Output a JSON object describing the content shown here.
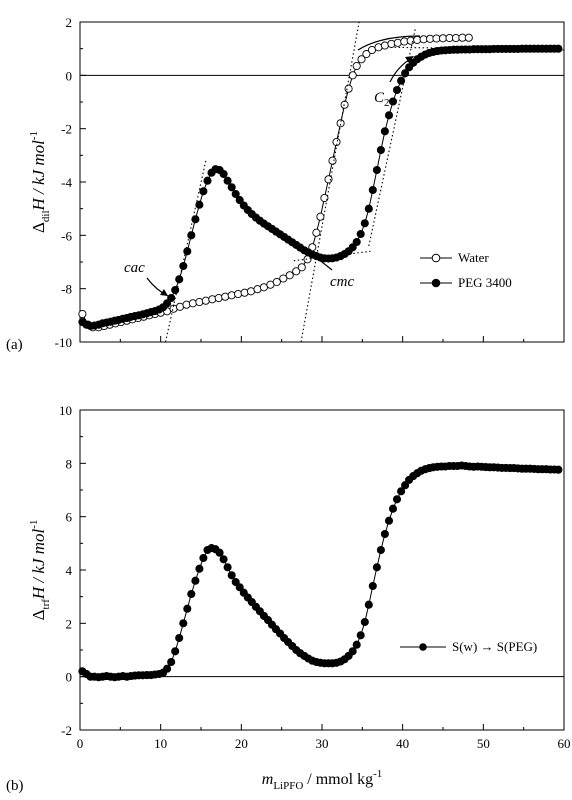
{
  "chart_data": [
    {
      "panel_label": "(a)",
      "type": "scatter",
      "ylabel_main": "Δ",
      "ylabel_sub": "dil",
      "ylabel_rest": "H / kJ mol",
      "ylabel_sup": "-1",
      "xlim": [
        0,
        60
      ],
      "ylim": [
        -10,
        2
      ],
      "yticks": [
        2,
        0,
        -2,
        -4,
        -6,
        -8,
        -10
      ],
      "yticklabels": [
        "2",
        "0",
        "-2",
        "-4",
        "-6",
        "-8",
        "-10"
      ],
      "zero_line": true,
      "grid": false,
      "legend_position": "center-right",
      "annotations": [
        {
          "text": "cac"
        },
        {
          "text": "cmc"
        },
        {
          "text": "C",
          "sub": "2"
        }
      ],
      "series": [
        {
          "name": "Water",
          "marker": "open-circle",
          "x": [
            0.3,
            1.0,
            1.6,
            2.3,
            3.0,
            3.7,
            4.4,
            5.1,
            5.8,
            6.5,
            7.2,
            7.9,
            8.6,
            9.3,
            10.0,
            10.8,
            11.6,
            12.4,
            13.2,
            14.0,
            14.8,
            15.6,
            16.4,
            17.2,
            18.0,
            18.8,
            19.6,
            20.4,
            21.2,
            22.0,
            22.8,
            23.6,
            24.4,
            25.2,
            26.0,
            26.8,
            27.5,
            28.2,
            28.8,
            29.3,
            29.8,
            30.3,
            30.8,
            31.3,
            31.8,
            32.3,
            32.8,
            33.3,
            33.8,
            34.3,
            34.9,
            35.5,
            36.2,
            37.0,
            37.8,
            38.6,
            39.4,
            40.2,
            41.0,
            41.8,
            42.6,
            43.4,
            44.2,
            45.0,
            45.8,
            46.6,
            47.4,
            48.2
          ],
          "y": [
            -8.95,
            -9.35,
            -9.45,
            -9.45,
            -9.4,
            -9.35,
            -9.3,
            -9.25,
            -9.2,
            -9.15,
            -9.1,
            -9.05,
            -9.0,
            -8.95,
            -8.9,
            -8.85,
            -8.75,
            -8.68,
            -8.6,
            -8.55,
            -8.5,
            -8.45,
            -8.4,
            -8.35,
            -8.3,
            -8.25,
            -8.2,
            -8.15,
            -8.1,
            -8.02,
            -7.95,
            -7.85,
            -7.75,
            -7.62,
            -7.5,
            -7.35,
            -7.2,
            -6.9,
            -6.45,
            -5.9,
            -5.3,
            -4.6,
            -3.9,
            -3.2,
            -2.5,
            -1.8,
            -1.1,
            -0.5,
            0.0,
            0.35,
            0.6,
            0.8,
            0.95,
            1.05,
            1.12,
            1.18,
            1.22,
            1.27,
            1.3,
            1.33,
            1.35,
            1.37,
            1.38,
            1.39,
            1.4,
            1.4,
            1.41,
            1.41
          ]
        },
        {
          "name": "PEG 3400",
          "marker": "filled-circle",
          "x": [
            0.3,
            0.8,
            1.3,
            1.8,
            2.3,
            2.8,
            3.3,
            3.8,
            4.3,
            4.8,
            5.3,
            5.8,
            6.3,
            6.8,
            7.3,
            7.8,
            8.3,
            8.8,
            9.3,
            9.8,
            10.3,
            10.8,
            11.3,
            11.8,
            12.3,
            12.8,
            13.3,
            13.8,
            14.3,
            14.8,
            15.3,
            15.8,
            16.3,
            16.8,
            17.3,
            17.8,
            18.3,
            18.8,
            19.3,
            19.8,
            20.3,
            20.8,
            21.3,
            21.8,
            22.3,
            22.8,
            23.3,
            23.8,
            24.3,
            24.8,
            25.3,
            25.8,
            26.3,
            26.8,
            27.3,
            27.8,
            28.3,
            28.8,
            29.3,
            29.8,
            30.3,
            30.8,
            31.3,
            31.8,
            32.3,
            32.8,
            33.3,
            33.8,
            34.3,
            34.8,
            35.3,
            35.8,
            36.3,
            36.8,
            37.3,
            37.8,
            38.3,
            38.8,
            39.3,
            39.8,
            40.3,
            40.8,
            41.3,
            41.8,
            42.3,
            42.8,
            43.3,
            43.8,
            44.3,
            44.8,
            45.3,
            45.8,
            46.3,
            46.8,
            47.3,
            47.8,
            48.3,
            48.8,
            49.3,
            49.8,
            50.3,
            50.8,
            51.3,
            51.8,
            52.3,
            52.8,
            53.3,
            53.8,
            54.3,
            54.8,
            55.3,
            55.8,
            56.3,
            56.8,
            57.3,
            57.8,
            58.3,
            58.8,
            59.3
          ],
          "y": [
            -9.25,
            -9.35,
            -9.4,
            -9.38,
            -9.35,
            -9.3,
            -9.27,
            -9.24,
            -9.2,
            -9.17,
            -9.13,
            -9.1,
            -9.06,
            -9.03,
            -9.0,
            -8.96,
            -8.92,
            -8.88,
            -8.84,
            -8.78,
            -8.7,
            -8.55,
            -8.35,
            -8.05,
            -7.65,
            -7.15,
            -6.6,
            -6.0,
            -5.4,
            -4.85,
            -4.35,
            -3.95,
            -3.65,
            -3.52,
            -3.55,
            -3.7,
            -3.95,
            -4.2,
            -4.45,
            -4.68,
            -4.88,
            -5.05,
            -5.2,
            -5.33,
            -5.45,
            -5.56,
            -5.66,
            -5.76,
            -5.86,
            -5.96,
            -6.06,
            -6.16,
            -6.26,
            -6.36,
            -6.46,
            -6.56,
            -6.64,
            -6.72,
            -6.78,
            -6.83,
            -6.86,
            -6.87,
            -6.86,
            -6.83,
            -6.78,
            -6.7,
            -6.6,
            -6.45,
            -6.25,
            -5.95,
            -5.55,
            -5.0,
            -4.3,
            -3.55,
            -2.8,
            -2.1,
            -1.5,
            -0.98,
            -0.55,
            -0.2,
            0.08,
            0.3,
            0.47,
            0.6,
            0.7,
            0.78,
            0.84,
            0.88,
            0.91,
            0.93,
            0.94,
            0.95,
            0.96,
            0.96,
            0.97,
            0.97,
            0.97,
            0.98,
            0.98,
            0.98,
            0.98,
            0.98,
            0.99,
            0.99,
            0.99,
            0.99,
            0.99,
            0.99,
            0.99,
            1.0,
            1.0,
            1.0,
            1.0,
            1.0,
            1.0,
            1.0,
            1.0,
            1.0,
            1.0
          ]
        }
      ]
    },
    {
      "panel_label": "(b)",
      "type": "scatter",
      "ylabel_main": "Δ",
      "ylabel_sub": "trf",
      "ylabel_rest": "H / kJ mol",
      "ylabel_sup": "-1",
      "xlabel_main": "m",
      "xlabel_sub": "LiPFO",
      "xlabel_rest": " / mmol kg",
      "xlabel_sup": "-1",
      "xlim": [
        0,
        60
      ],
      "ylim": [
        -2,
        10
      ],
      "xticks": [
        0,
        10,
        20,
        30,
        40,
        50,
        60
      ],
      "xticklabels": [
        "0",
        "10",
        "20",
        "30",
        "40",
        "50",
        "60"
      ],
      "yticks": [
        10,
        8,
        6,
        4,
        2,
        0,
        -2
      ],
      "yticklabels": [
        "10",
        "8",
        "6",
        "4",
        "2",
        "0",
        "-2"
      ],
      "zero_line": true,
      "grid": false,
      "legend_position": "center-right",
      "series": [
        {
          "name": "S(w) → S(PEG)",
          "marker": "filled-circle",
          "x": [
            0.3,
            0.8,
            1.3,
            1.8,
            2.3,
            2.8,
            3.3,
            3.8,
            4.3,
            4.8,
            5.3,
            5.8,
            6.3,
            6.8,
            7.3,
            7.8,
            8.3,
            8.8,
            9.3,
            9.8,
            10.3,
            10.8,
            11.3,
            11.8,
            12.3,
            12.8,
            13.3,
            13.8,
            14.3,
            14.8,
            15.3,
            15.8,
            16.3,
            16.8,
            17.3,
            17.8,
            18.3,
            18.8,
            19.3,
            19.8,
            20.3,
            20.8,
            21.3,
            21.8,
            22.3,
            22.8,
            23.3,
            23.8,
            24.3,
            24.8,
            25.3,
            25.8,
            26.3,
            26.8,
            27.3,
            27.8,
            28.3,
            28.8,
            29.3,
            29.8,
            30.3,
            30.8,
            31.3,
            31.8,
            32.3,
            32.8,
            33.3,
            33.8,
            34.3,
            34.8,
            35.3,
            35.8,
            36.3,
            36.8,
            37.3,
            37.8,
            38.3,
            38.8,
            39.3,
            39.8,
            40.3,
            40.8,
            41.3,
            41.8,
            42.3,
            42.8,
            43.3,
            43.8,
            44.3,
            44.8,
            45.3,
            45.8,
            46.3,
            46.8,
            47.3,
            47.8,
            48.3,
            48.8,
            49.3,
            49.8,
            50.3,
            50.8,
            51.3,
            51.8,
            52.3,
            52.8,
            53.3,
            53.8,
            54.3,
            54.8,
            55.3,
            55.8,
            56.3,
            56.8,
            57.3,
            57.8,
            58.3,
            58.8,
            59.3
          ],
          "y": [
            0.2,
            0.1,
            0.0,
            0.0,
            -0.02,
            0.0,
            0.02,
            0.0,
            -0.02,
            0.0,
            0.02,
            0.0,
            0.02,
            0.04,
            0.05,
            0.05,
            0.06,
            0.06,
            0.08,
            0.1,
            0.15,
            0.3,
            0.55,
            0.95,
            1.45,
            2.0,
            2.55,
            3.1,
            3.6,
            4.05,
            4.45,
            4.75,
            4.82,
            4.78,
            4.65,
            4.4,
            4.1,
            3.8,
            3.55,
            3.35,
            3.15,
            2.97,
            2.8,
            2.62,
            2.45,
            2.28,
            2.12,
            1.95,
            1.78,
            1.62,
            1.45,
            1.3,
            1.15,
            1.0,
            0.88,
            0.78,
            0.68,
            0.6,
            0.55,
            0.52,
            0.5,
            0.5,
            0.5,
            0.52,
            0.57,
            0.65,
            0.78,
            0.95,
            1.2,
            1.55,
            2.05,
            2.7,
            3.4,
            4.1,
            4.75,
            5.35,
            5.85,
            6.3,
            6.65,
            6.95,
            7.18,
            7.38,
            7.52,
            7.63,
            7.72,
            7.78,
            7.82,
            7.85,
            7.87,
            7.88,
            7.88,
            7.9,
            7.9,
            7.9,
            7.92,
            7.9,
            7.88,
            7.87,
            7.88,
            7.87,
            7.86,
            7.85,
            7.85,
            7.84,
            7.83,
            7.83,
            7.82,
            7.82,
            7.81,
            7.8,
            7.8,
            7.8,
            7.79,
            7.78,
            7.78,
            7.78,
            7.77,
            7.77,
            7.76
          ]
        }
      ]
    }
  ]
}
